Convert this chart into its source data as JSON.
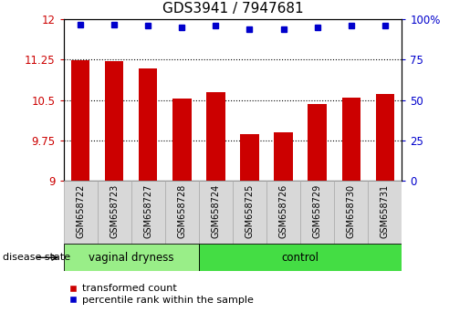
{
  "title": "GDS3941 / 7947681",
  "samples": [
    "GSM658722",
    "GSM658723",
    "GSM658727",
    "GSM658728",
    "GSM658724",
    "GSM658725",
    "GSM658726",
    "GSM658729",
    "GSM658730",
    "GSM658731"
  ],
  "bar_values": [
    11.24,
    11.23,
    11.09,
    10.53,
    10.65,
    9.87,
    9.9,
    10.43,
    10.55,
    10.62
  ],
  "dot_values": [
    97,
    97,
    96,
    95,
    96,
    94,
    94,
    95,
    96,
    96
  ],
  "ylim_left": [
    9,
    12
  ],
  "ylim_right": [
    0,
    100
  ],
  "yticks_left": [
    9,
    9.75,
    10.5,
    11.25,
    12
  ],
  "yticks_right": [
    0,
    25,
    50,
    75,
    100
  ],
  "bar_color": "#cc0000",
  "dot_color": "#0000cc",
  "group1_label": "vaginal dryness",
  "group2_label": "control",
  "group1_count": 4,
  "group2_count": 6,
  "legend1": "transformed count",
  "legend2": "percentile rank within the sample",
  "disease_state_label": "disease state",
  "group1_color": "#99ee88",
  "group2_color": "#44dd44",
  "sample_box_color": "#d8d8d8",
  "sample_box_edge": "#aaaaaa"
}
